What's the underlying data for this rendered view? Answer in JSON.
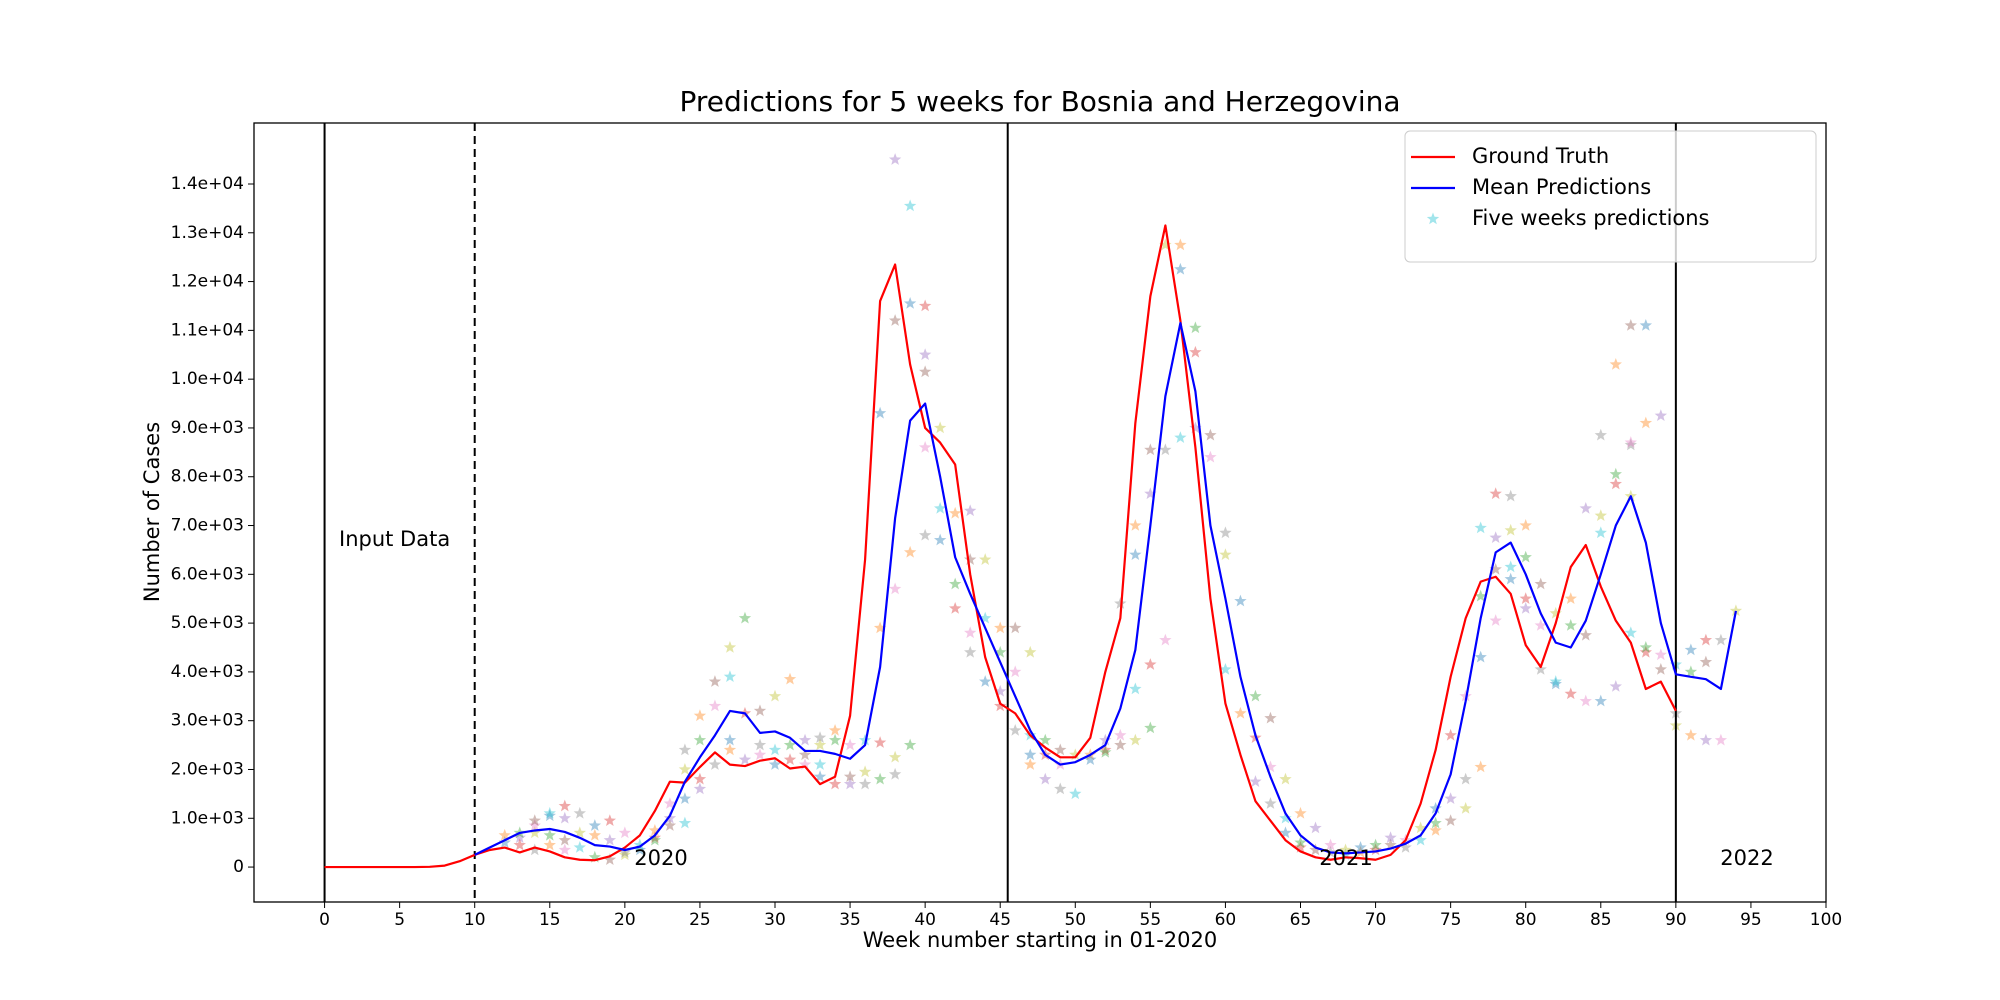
{
  "chart_data": {
    "type": "line",
    "title": "Predictions for 5 weeks for Bosnia and Herzegovina",
    "xlabel": "Week number starting in 01-2020",
    "ylabel": "Number of Cases",
    "xlim": [
      -4.7,
      100
    ],
    "ylim": [
      -716,
      15250
    ],
    "xticks": [
      0,
      5,
      10,
      15,
      20,
      25,
      30,
      35,
      40,
      45,
      50,
      55,
      60,
      65,
      70,
      75,
      80,
      85,
      90,
      95,
      100
    ],
    "yticks": [
      0,
      {
        "value": 1000,
        "label": "1.0e+03"
      },
      {
        "value": 2000,
        "label": "2.0e+03"
      },
      {
        "value": 3000,
        "label": "3.0e+03"
      },
      {
        "value": 4000,
        "label": "4.0e+03"
      },
      {
        "value": 5000,
        "label": "5.0e+03"
      },
      {
        "value": 6000,
        "label": "6.0e+03"
      },
      {
        "value": 7000,
        "label": "7.0e+03"
      },
      {
        "value": 8000,
        "label": "8.0e+03"
      },
      {
        "value": 9000,
        "label": "9.0e+03"
      },
      {
        "value": 10000,
        "label": "1.0e+04"
      },
      {
        "value": 11000,
        "label": "1.1e+04"
      },
      {
        "value": 12000,
        "label": "1.2e+04"
      },
      {
        "value": 13000,
        "label": "1.3e+04"
      },
      {
        "value": 14000,
        "label": "1.4e+04"
      }
    ],
    "grid": false,
    "legend": "upper right",
    "vlines": [
      {
        "x": 0,
        "style": "solid"
      },
      {
        "x": 10,
        "style": "dashed"
      },
      {
        "x": 45.5,
        "style": "solid"
      },
      {
        "x": 90,
        "style": "solid"
      }
    ],
    "annotations": [
      "Input Data",
      "2020",
      "2021",
      "2022"
    ],
    "series": [
      {
        "name": "Ground Truth",
        "kind": "line",
        "color": "#ff0000",
        "x": [
          0,
          1,
          2,
          3,
          4,
          5,
          6,
          7,
          8,
          9,
          10,
          11,
          12,
          13,
          14,
          15,
          16,
          17,
          18,
          19,
          20,
          21,
          22,
          23,
          24,
          25,
          26,
          27,
          28,
          29,
          30,
          31,
          32,
          33,
          34,
          35,
          36,
          37,
          38,
          39,
          40,
          41,
          42,
          43,
          44,
          45,
          46,
          47,
          48,
          49,
          50,
          51,
          52,
          53,
          54,
          55,
          56,
          57,
          58,
          59,
          60,
          61,
          62,
          63,
          64,
          65,
          66,
          67,
          68,
          69,
          70,
          71,
          72,
          73,
          74,
          75,
          76,
          77,
          78,
          79,
          80,
          81,
          82,
          83,
          84,
          85,
          86,
          87,
          88,
          89,
          90
        ],
        "values": [
          0,
          0,
          0,
          0,
          0,
          0,
          0,
          5,
          30,
          120,
          250,
          350,
          400,
          300,
          400,
          320,
          200,
          150,
          140,
          220,
          400,
          650,
          1150,
          1750,
          1730,
          2050,
          2350,
          2100,
          2070,
          2180,
          2230,
          2020,
          2060,
          1700,
          1850,
          3100,
          6300,
          11600,
          12350,
          10300,
          9000,
          8700,
          8250,
          6000,
          4300,
          3350,
          3150,
          2700,
          2450,
          2250,
          2250,
          2650,
          4000,
          5100,
          9100,
          11700,
          13150,
          11200,
          8600,
          5500,
          3350,
          2300,
          1350,
          950,
          550,
          320,
          200,
          150,
          200,
          180,
          150,
          250,
          550,
          1300,
          2400,
          3900,
          5100,
          5850,
          5950,
          5600,
          4550,
          4100,
          5000,
          6150,
          6600,
          5750,
          5050,
          4600,
          3650,
          3800,
          3200
        ]
      },
      {
        "name": "Mean Predictions",
        "kind": "line",
        "color": "#0000ff",
        "x": [
          10,
          11,
          12,
          13,
          14,
          15,
          16,
          17,
          18,
          19,
          20,
          21,
          22,
          23,
          24,
          25,
          26,
          27,
          28,
          29,
          30,
          31,
          32,
          33,
          34,
          35,
          36,
          37,
          38,
          39,
          40,
          41,
          42,
          43,
          44,
          45,
          46,
          47,
          48,
          49,
          50,
          51,
          52,
          53,
          54,
          55,
          56,
          57,
          58,
          59,
          60,
          61,
          62,
          63,
          64,
          65,
          66,
          67,
          68,
          69,
          70,
          71,
          72,
          73,
          74,
          75,
          76,
          77,
          78,
          79,
          80,
          81,
          82,
          83,
          84,
          85,
          86,
          87,
          88,
          89,
          90,
          91,
          92,
          93,
          94
        ],
        "values": [
          250,
          400,
          550,
          700,
          750,
          780,
          720,
          600,
          450,
          420,
          350,
          420,
          650,
          1050,
          1750,
          2250,
          2700,
          3200,
          3150,
          2750,
          2780,
          2650,
          2380,
          2380,
          2320,
          2220,
          2500,
          4100,
          7150,
          9150,
          9500,
          8000,
          6350,
          5600,
          4900,
          4200,
          3500,
          2800,
          2300,
          2100,
          2150,
          2300,
          2500,
          3250,
          4450,
          7000,
          9650,
          11150,
          9750,
          7000,
          5500,
          3900,
          2700,
          1850,
          1100,
          650,
          400,
          300,
          280,
          300,
          320,
          380,
          480,
          650,
          1100,
          1900,
          3400,
          5100,
          6450,
          6650,
          6000,
          5200,
          4600,
          4500,
          5050,
          6000,
          7000,
          7600,
          6650,
          5000,
          3950,
          3900,
          3850,
          3650,
          5250
        ]
      },
      {
        "name": "Five weeks predictions",
        "kind": "scatter",
        "marker": "star",
        "color": "#17becf",
        "alpha": 0.4,
        "palette": [
          "#1f77b4",
          "#ff7f0e",
          "#2ca02c",
          "#d62728",
          "#9467bd",
          "#8c564b",
          "#e377c2",
          "#7f7f7f",
          "#bcbd22",
          "#17becf"
        ],
        "x": [
          12,
          12,
          13,
          13,
          13,
          14,
          14,
          14,
          14,
          15,
          15,
          15,
          15,
          16,
          16,
          16,
          16,
          17,
          17,
          17,
          18,
          18,
          18,
          19,
          19,
          19,
          20,
          20,
          20,
          21,
          21,
          22,
          22,
          22,
          23,
          23,
          23,
          24,
          24,
          24,
          24,
          25,
          25,
          25,
          25,
          26,
          26,
          26,
          27,
          27,
          27,
          27,
          28,
          28,
          28,
          29,
          29,
          29,
          30,
          30,
          30,
          31,
          31,
          31,
          32,
          32,
          32,
          33,
          33,
          33,
          33,
          34,
          34,
          34,
          35,
          35,
          35,
          36,
          36,
          36,
          37,
          37,
          37,
          37,
          38,
          38,
          38,
          38,
          38,
          39,
          39,
          39,
          39,
          40,
          40,
          40,
          40,
          40,
          41,
          41,
          41,
          42,
          42,
          42,
          43,
          43,
          43,
          43,
          44,
          44,
          44,
          45,
          45,
          45,
          45,
          46,
          46,
          46,
          47,
          47,
          47,
          47,
          48,
          48,
          48,
          49,
          49,
          49,
          50,
          50,
          51,
          51,
          52,
          52,
          52,
          53,
          53,
          53,
          54,
          54,
          54,
          54,
          55,
          55,
          55,
          55,
          56,
          56,
          56,
          57,
          57,
          57,
          58,
          58,
          58,
          59,
          59,
          60,
          60,
          60,
          61,
          61,
          62,
          62,
          62,
          63,
          63,
          63,
          64,
          64,
          64,
          65,
          65,
          65,
          66,
          66,
          67,
          67,
          68,
          68,
          69,
          69,
          70,
          70,
          71,
          71,
          72,
          72,
          73,
          73,
          74,
          74,
          74,
          75,
          75,
          75,
          76,
          76,
          76,
          77,
          77,
          77,
          77,
          78,
          78,
          78,
          78,
          79,
          79,
          79,
          79,
          80,
          80,
          80,
          80,
          81,
          81,
          81,
          82,
          82,
          82,
          83,
          83,
          83,
          84,
          84,
          84,
          85,
          85,
          85,
          85,
          86,
          86,
          86,
          86,
          87,
          87,
          87,
          87,
          87,
          88,
          88,
          88,
          88,
          89,
          89,
          89,
          90,
          90,
          90,
          91,
          91,
          91,
          92,
          92,
          92,
          93,
          93,
          94
        ],
        "values": [
          500,
          650,
          700,
          450,
          600,
          950,
          850,
          350,
          700,
          1100,
          1050,
          450,
          650,
          1250,
          1000,
          550,
          350,
          1100,
          700,
          400,
          850,
          650,
          200,
          950,
          550,
          150,
          700,
          300,
          250,
          450,
          350,
          750,
          550,
          600,
          1000,
          850,
          1300,
          2400,
          2000,
          900,
          1400,
          3100,
          2600,
          1800,
          1600,
          3800,
          3300,
          2100,
          4500,
          3900,
          2600,
          2400,
          5100,
          3150,
          2200,
          3200,
          2300,
          2500,
          3500,
          2400,
          2100,
          3850,
          2500,
          2200,
          2600,
          2300,
          2100,
          2650,
          2500,
          2100,
          1850,
          2800,
          2600,
          1700,
          1700,
          1850,
          2500,
          1700,
          1950,
          2600,
          9300,
          4900,
          1800,
          2550,
          14500,
          11200,
          5700,
          1900,
          2250,
          13550,
          11550,
          6450,
          2500,
          11500,
          10500,
          10150,
          8600,
          6800,
          9000,
          7350,
          6700,
          7250,
          5800,
          5300,
          7300,
          6300,
          4800,
          4400,
          6300,
          5100,
          3800,
          4900,
          4400,
          3300,
          3600,
          4900,
          4000,
          2800,
          4400,
          2700,
          2300,
          2100,
          2600,
          2300,
          1800,
          2400,
          2100,
          1600,
          2300,
          1500,
          2200,
          2300,
          2350,
          2400,
          2600,
          2500,
          2700,
          5400,
          2600,
          3650,
          6400,
          7000,
          2850,
          4150,
          7650,
          8550,
          4650,
          8550,
          12750,
          8800,
          12250,
          12750,
          11050,
          10550,
          9000,
          8850,
          8400,
          6850,
          6400,
          4050,
          5450,
          3150,
          3500,
          2650,
          1750,
          3050,
          2050,
          1300,
          1800,
          1000,
          700,
          1100,
          500,
          400,
          800,
          350,
          450,
          300,
          350,
          250,
          400,
          300,
          450,
          350,
          600,
          450,
          550,
          400,
          800,
          550,
          1200,
          750,
          900,
          2700,
          1400,
          950,
          3500,
          1800,
          1200,
          6950,
          4300,
          2050,
          5550,
          7650,
          6750,
          6100,
          5050,
          7600,
          6900,
          6150,
          5900,
          7000,
          6350,
          5500,
          5300,
          5800,
          4950,
          4050,
          5200,
          3800,
          3750,
          5500,
          4950,
          3550,
          7350,
          4750,
          3400,
          8850,
          7200,
          6850,
          3400,
          10300,
          8050,
          7850,
          3700,
          11100,
          8700,
          8650,
          7600,
          4800,
          11100,
          9100,
          4500,
          4400,
          9250,
          4050,
          4350,
          3150,
          2900,
          4150,
          4450,
          2700,
          4000,
          4650,
          2600,
          4200,
          2600,
          4650,
          5250
        ]
      }
    ]
  }
}
